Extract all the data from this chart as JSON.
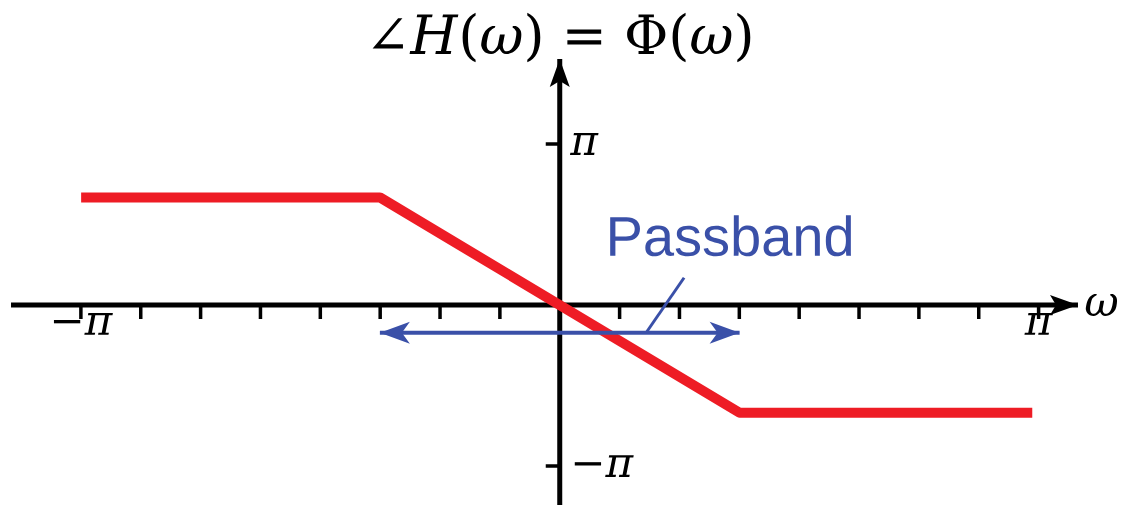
{
  "chart_data": {
    "type": "line",
    "ylabel": "∠*H*(*ω*) = Φ(*ω*)",
    "xlabel": "ω",
    "series": [
      {
        "x": [
          -3.14,
          -1.18,
          1.18,
          3.1
        ],
        "values": [
          2.1,
          2.1,
          -2.1,
          -2.1
        ],
        "color": "#ee1c25"
      },
      {
        "name": "Passband",
        "x": [
          -1.18,
          1.18
        ],
        "values": [
          -0.54,
          -0.54
        ],
        "color": "#3a50a8"
      }
    ],
    "xlim": [
      -3.6,
      3.4
    ],
    "ylim": [
      -3.9,
      4.8
    ],
    "xticks": [
      {
        "value": -3.1416,
        "label": "−π"
      },
      {
        "value": -2.7489,
        "label": null
      },
      {
        "value": -2.3562,
        "label": null
      },
      {
        "value": -1.9635,
        "label": null
      },
      {
        "value": -1.5708,
        "label": null
      },
      {
        "value": -1.1781,
        "label": null
      },
      {
        "value": -0.7854,
        "label": null
      },
      {
        "value": -0.3927,
        "label": null
      },
      {
        "value": 0.3927,
        "label": null
      },
      {
        "value": 0.7854,
        "label": null
      },
      {
        "value": 1.1781,
        "label": null
      },
      {
        "value": 1.5708,
        "label": null
      },
      {
        "value": 1.9635,
        "label": null
      },
      {
        "value": 2.3562,
        "label": null
      },
      {
        "value": 2.7489,
        "label": null
      },
      {
        "value": 3.1416,
        "label": "π"
      }
    ],
    "yticks": [
      {
        "value": -3.1416,
        "label": "−π"
      },
      {
        "value": 3.1416,
        "label": "π"
      }
    ]
  }
}
